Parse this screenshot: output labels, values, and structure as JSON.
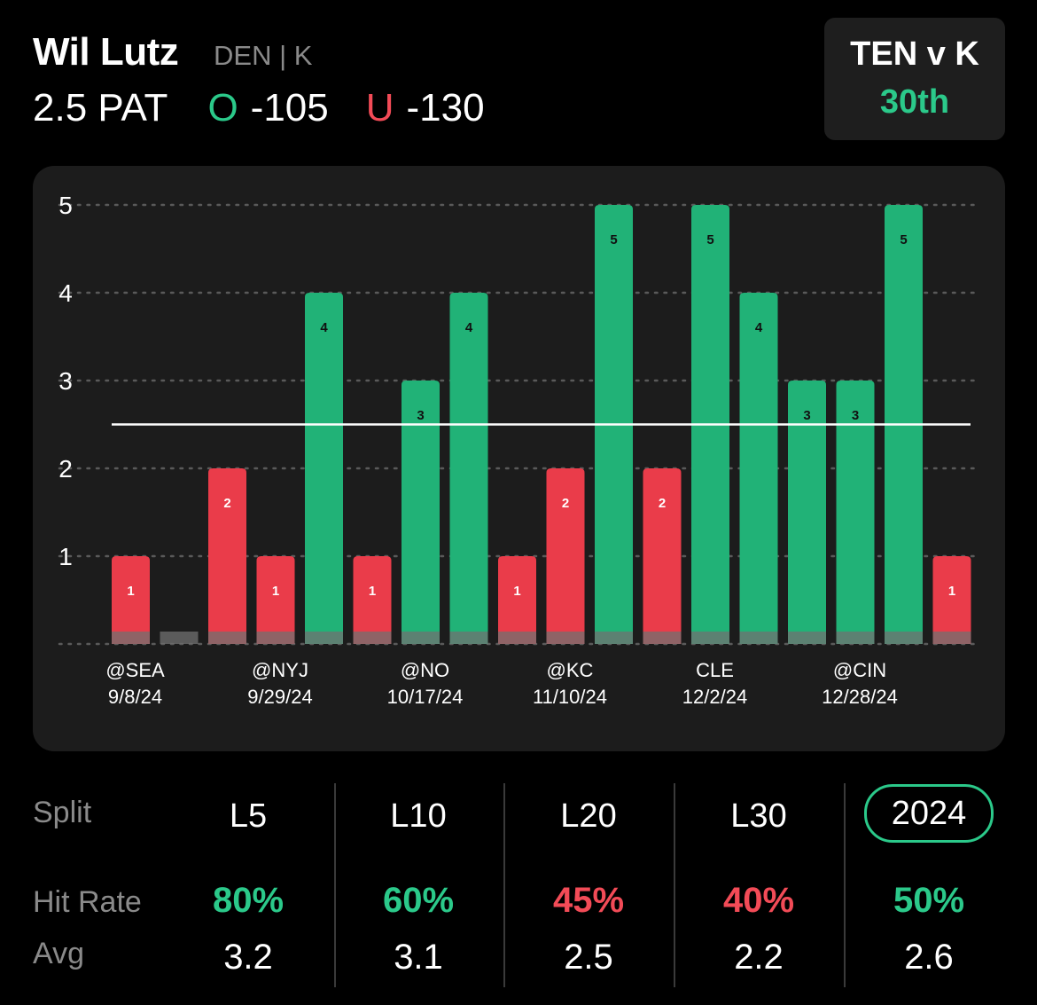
{
  "header": {
    "player": "Wil Lutz",
    "team_pos": "DEN | K",
    "prop_line": "2.5 PAT",
    "over_marker": "O",
    "over_odds": "-105",
    "under_marker": "U",
    "under_odds": "-130"
  },
  "matchup": {
    "title": "TEN v K",
    "rank": "30th"
  },
  "colors": {
    "over": "#2bc98a",
    "under": "#f24b57",
    "bar_green": "#21b277",
    "bar_red": "#ea3c4a",
    "grey": "#6e6e6e"
  },
  "chart_data": {
    "type": "bar",
    "values": [
      1,
      0,
      2,
      1,
      4,
      1,
      3,
      4,
      1,
      2,
      5,
      2,
      5,
      4,
      3,
      3,
      5,
      1
    ],
    "x_labels": [
      {
        "index": 0,
        "opponent": "@SEA",
        "date": "9/8/24"
      },
      {
        "index": 3,
        "opponent": "@NYJ",
        "date": "9/29/24"
      },
      {
        "index": 6,
        "opponent": "@NO",
        "date": "10/17/24"
      },
      {
        "index": 9,
        "opponent": "@KC",
        "date": "11/10/24"
      },
      {
        "index": 12,
        "opponent": "CLE",
        "date": "12/2/24"
      },
      {
        "index": 15,
        "opponent": "@CIN",
        "date": "12/28/24"
      }
    ],
    "y_ticks": [
      1,
      2,
      3,
      4,
      5
    ],
    "ylim": [
      0,
      5
    ],
    "line_value": 2.5,
    "grid": true
  },
  "splits": {
    "label": "Split",
    "hit_rate_label": "Hit Rate",
    "avg_label": "Avg",
    "columns": [
      {
        "name": "L5",
        "hit_rate": "80%",
        "avg": "3.2",
        "hit_color": "#2bc98a",
        "selected": false
      },
      {
        "name": "L10",
        "hit_rate": "60%",
        "avg": "3.1",
        "hit_color": "#2bc98a",
        "selected": false
      },
      {
        "name": "L20",
        "hit_rate": "45%",
        "avg": "2.5",
        "hit_color": "#f24b57",
        "selected": false
      },
      {
        "name": "L30",
        "hit_rate": "40%",
        "avg": "2.2",
        "hit_color": "#f24b57",
        "selected": false
      },
      {
        "name": "2024",
        "hit_rate": "50%",
        "avg": "2.6",
        "hit_color": "#2bc98a",
        "selected": true
      }
    ]
  }
}
